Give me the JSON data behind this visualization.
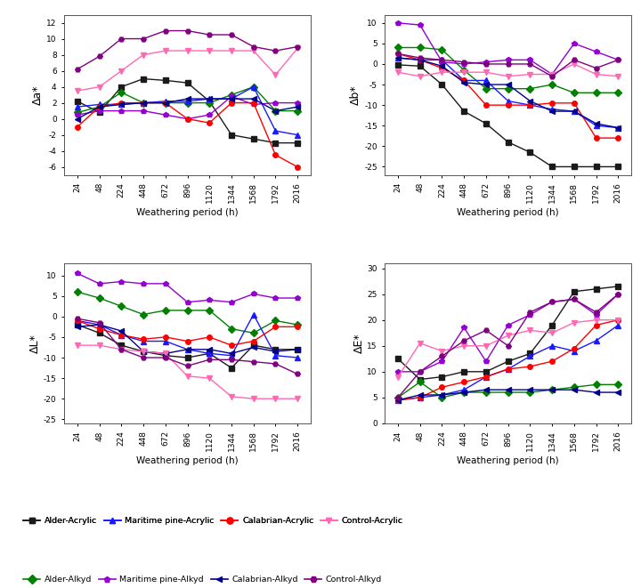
{
  "x_indices": [
    0,
    1,
    2,
    3,
    4,
    5,
    6,
    7,
    8,
    9,
    10
  ],
  "xtick_labels": [
    "24",
    "48",
    "224",
    "448",
    "672",
    "896",
    "1120",
    "1344",
    "1568",
    "1792",
    "2016"
  ],
  "xlabel": "Weathering period (h)",
  "series_order": [
    "Alder-Acrylic",
    "Alder-Alkyd",
    "Maritime-Acrylic",
    "Maritime-Alkyd",
    "Calabrian-Acrylic",
    "Calabrian-Alkyd",
    "Control-Acrylic",
    "Control-Alkyd"
  ],
  "series": {
    "Alder-Acrylic": {
      "color": "#1a1a1a",
      "marker": "s",
      "da": [
        2.2,
        0.8,
        4.0,
        5.0,
        4.8,
        4.5,
        2.2,
        -2.0,
        -2.5,
        -3.0,
        -3.0
      ],
      "db": [
        -0.2,
        -0.5,
        -5.0,
        -11.5,
        -14.5,
        -19.0,
        -21.5,
        -25.0,
        -25.0,
        -25.0,
        -25.0
      ],
      "dL": [
        -2.0,
        -4.0,
        -7.0,
        -8.5,
        -9.5,
        -10.0,
        -9.0,
        -12.5,
        -7.0,
        -8.0,
        -8.0
      ],
      "dE": [
        12.5,
        8.5,
        9.0,
        10.0,
        10.0,
        12.0,
        13.5,
        19.0,
        25.5,
        26.0,
        26.5
      ]
    },
    "Alder-Alkyd": {
      "color": "#008000",
      "marker": "D",
      "da": [
        0.8,
        1.5,
        3.3,
        2.0,
        2.0,
        2.0,
        2.0,
        3.0,
        4.0,
        1.0,
        1.0
      ],
      "db": [
        4.0,
        4.0,
        3.5,
        -1.5,
        -6.0,
        -6.0,
        -6.0,
        -5.0,
        -7.0,
        -7.0,
        -7.0
      ],
      "dL": [
        6.0,
        4.5,
        2.5,
        0.5,
        1.5,
        1.5,
        1.5,
        -3.0,
        -4.0,
        -1.0,
        -2.0
      ],
      "dE": [
        5.0,
        8.0,
        5.0,
        6.0,
        6.0,
        6.0,
        6.0,
        6.5,
        7.0,
        7.5,
        7.5
      ]
    },
    "Maritime-Acrylic": {
      "color": "#1a1aff",
      "marker": "^",
      "da": [
        1.5,
        1.8,
        1.8,
        2.0,
        2.2,
        2.2,
        2.5,
        2.5,
        4.0,
        -1.5,
        -2.0
      ],
      "db": [
        1.5,
        1.0,
        1.0,
        -4.0,
        -4.0,
        -9.0,
        -10.0,
        -11.0,
        -11.5,
        -15.0,
        -15.5
      ],
      "dL": [
        -1.0,
        -2.0,
        -4.5,
        -6.0,
        -6.0,
        -8.0,
        -9.0,
        -9.5,
        0.5,
        -9.5,
        -10.0
      ],
      "dE": [
        4.5,
        5.0,
        5.5,
        6.5,
        9.0,
        10.5,
        13.0,
        15.0,
        14.0,
        16.0,
        19.0
      ]
    },
    "Maritime-Alkyd": {
      "color": "#9400D3",
      "marker": "p",
      "da": [
        0.5,
        1.0,
        1.0,
        1.0,
        0.5,
        0.0,
        0.5,
        2.8,
        1.8,
        2.0,
        2.0
      ],
      "db": [
        10.0,
        9.5,
        0.5,
        0.0,
        0.5,
        1.0,
        1.0,
        -2.5,
        5.0,
        3.0,
        1.0
      ],
      "dL": [
        10.5,
        8.0,
        8.5,
        8.0,
        8.0,
        3.5,
        4.0,
        3.5,
        5.5,
        4.5,
        4.5
      ],
      "dE": [
        10.0,
        10.0,
        12.0,
        18.5,
        12.0,
        19.0,
        21.0,
        23.5,
        24.0,
        21.0,
        25.0
      ]
    },
    "Calabrian-Acrylic": {
      "color": "#FF0000",
      "marker": "o",
      "da": [
        -1.0,
        1.5,
        2.0,
        2.0,
        2.0,
        0.0,
        -0.5,
        2.0,
        2.0,
        -4.5,
        -6.0
      ],
      "db": [
        2.5,
        1.0,
        -1.0,
        -4.0,
        -10.0,
        -10.0,
        -10.0,
        -9.5,
        -9.5,
        -18.0,
        -18.0
      ],
      "dL": [
        -1.0,
        -3.0,
        -4.5,
        -5.5,
        -5.0,
        -6.0,
        -5.0,
        -7.0,
        -6.0,
        -2.5,
        -2.5
      ],
      "dE": [
        4.5,
        5.0,
        7.0,
        8.0,
        9.0,
        10.5,
        11.0,
        12.0,
        14.5,
        19.0,
        20.0
      ]
    },
    "Calabrian-Alkyd": {
      "color": "#00008B",
      "marker": "<",
      "da": [
        0.0,
        1.5,
        1.8,
        2.0,
        2.0,
        2.5,
        2.5,
        2.5,
        2.5,
        1.0,
        1.5
      ],
      "db": [
        1.5,
        1.0,
        -0.5,
        -4.5,
        -5.0,
        -5.0,
        -9.0,
        -11.5,
        -11.5,
        -14.5,
        -15.5
      ],
      "dL": [
        -2.5,
        -2.0,
        -3.5,
        -8.5,
        -9.0,
        -8.0,
        -8.0,
        -9.0,
        -7.5,
        -8.5,
        -8.0
      ],
      "dE": [
        4.5,
        5.5,
        5.5,
        6.0,
        6.5,
        6.5,
        6.5,
        6.5,
        6.5,
        6.0,
        6.0
      ]
    },
    "Control-Acrylic": {
      "color": "#FF69B4",
      "marker": "v",
      "da": [
        3.5,
        4.0,
        6.0,
        8.0,
        8.5,
        8.5,
        8.5,
        8.5,
        8.5,
        5.5,
        8.8
      ],
      "db": [
        -2.0,
        -3.0,
        -2.0,
        -2.0,
        -2.0,
        -3.0,
        -2.5,
        -2.5,
        0.0,
        -2.5,
        -3.0
      ],
      "dL": [
        -7.0,
        -7.0,
        -8.0,
        -8.5,
        -9.0,
        -14.5,
        -15.0,
        -19.5,
        -20.0,
        -20.0,
        -20.0
      ],
      "dE": [
        9.0,
        15.5,
        14.0,
        15.0,
        15.0,
        17.0,
        18.0,
        17.5,
        19.5,
        20.0,
        20.0
      ]
    },
    "Control-Alkyd": {
      "color": "#800080",
      "marker": "H",
      "da": [
        6.2,
        7.8,
        10.0,
        10.0,
        11.0,
        11.0,
        10.5,
        10.5,
        9.0,
        8.5,
        9.0
      ],
      "db": [
        2.5,
        1.5,
        1.0,
        0.5,
        0.0,
        0.0,
        0.0,
        -3.0,
        1.0,
        -1.0,
        1.0
      ],
      "dL": [
        -0.5,
        -1.5,
        -8.0,
        -10.0,
        -10.0,
        -12.0,
        -10.5,
        -10.5,
        -11.0,
        -11.5,
        -14.0
      ],
      "dE": [
        5.0,
        10.0,
        13.0,
        16.0,
        18.0,
        15.0,
        21.5,
        23.5,
        24.0,
        21.5,
        25.0
      ]
    }
  },
  "ylims": {
    "da": [
      -7,
      13
    ],
    "db": [
      -27,
      12
    ],
    "dL": [
      -26,
      13
    ],
    "dE": [
      0,
      31
    ]
  },
  "yticks": {
    "da": [
      -6,
      -4,
      -2,
      0,
      2,
      4,
      6,
      8,
      10,
      12
    ],
    "db": [
      -25,
      -20,
      -15,
      -10,
      -5,
      0,
      5,
      10
    ],
    "dL": [
      -25,
      -20,
      -15,
      -10,
      -5,
      0,
      5,
      10
    ],
    "dE": [
      0,
      5,
      10,
      15,
      20,
      25,
      30
    ]
  },
  "ylabels": {
    "da": "Δa*",
    "db": "Δb*",
    "dL": "ΔL*",
    "dE": "ΔE*"
  },
  "legend_row1": [
    {
      "label": "Alder-Acrylic",
      "color": "#1a1a1a",
      "marker": "s"
    },
    {
      "label": "Maritime pine-Acrylic",
      "color": "#1a1aff",
      "marker": "^"
    },
    {
      "label": "Calabrian-Acrylic",
      "color": "#FF0000",
      "marker": "o"
    },
    {
      "label": "Control-Acrylic",
      "color": "#FF69B4",
      "marker": "v"
    }
  ],
  "legend_row2": [
    {
      "label": "Alder-Alkyd",
      "color": "#008000",
      "marker": "D"
    },
    {
      "label": "Maritime pine-Alkyd",
      "color": "#9400D3",
      "marker": "p"
    },
    {
      "label": "Calabrian-Alkyd",
      "color": "#00008B",
      "marker": "<"
    },
    {
      "label": "Control-Alkyd",
      "color": "#800080",
      "marker": "H"
    }
  ]
}
